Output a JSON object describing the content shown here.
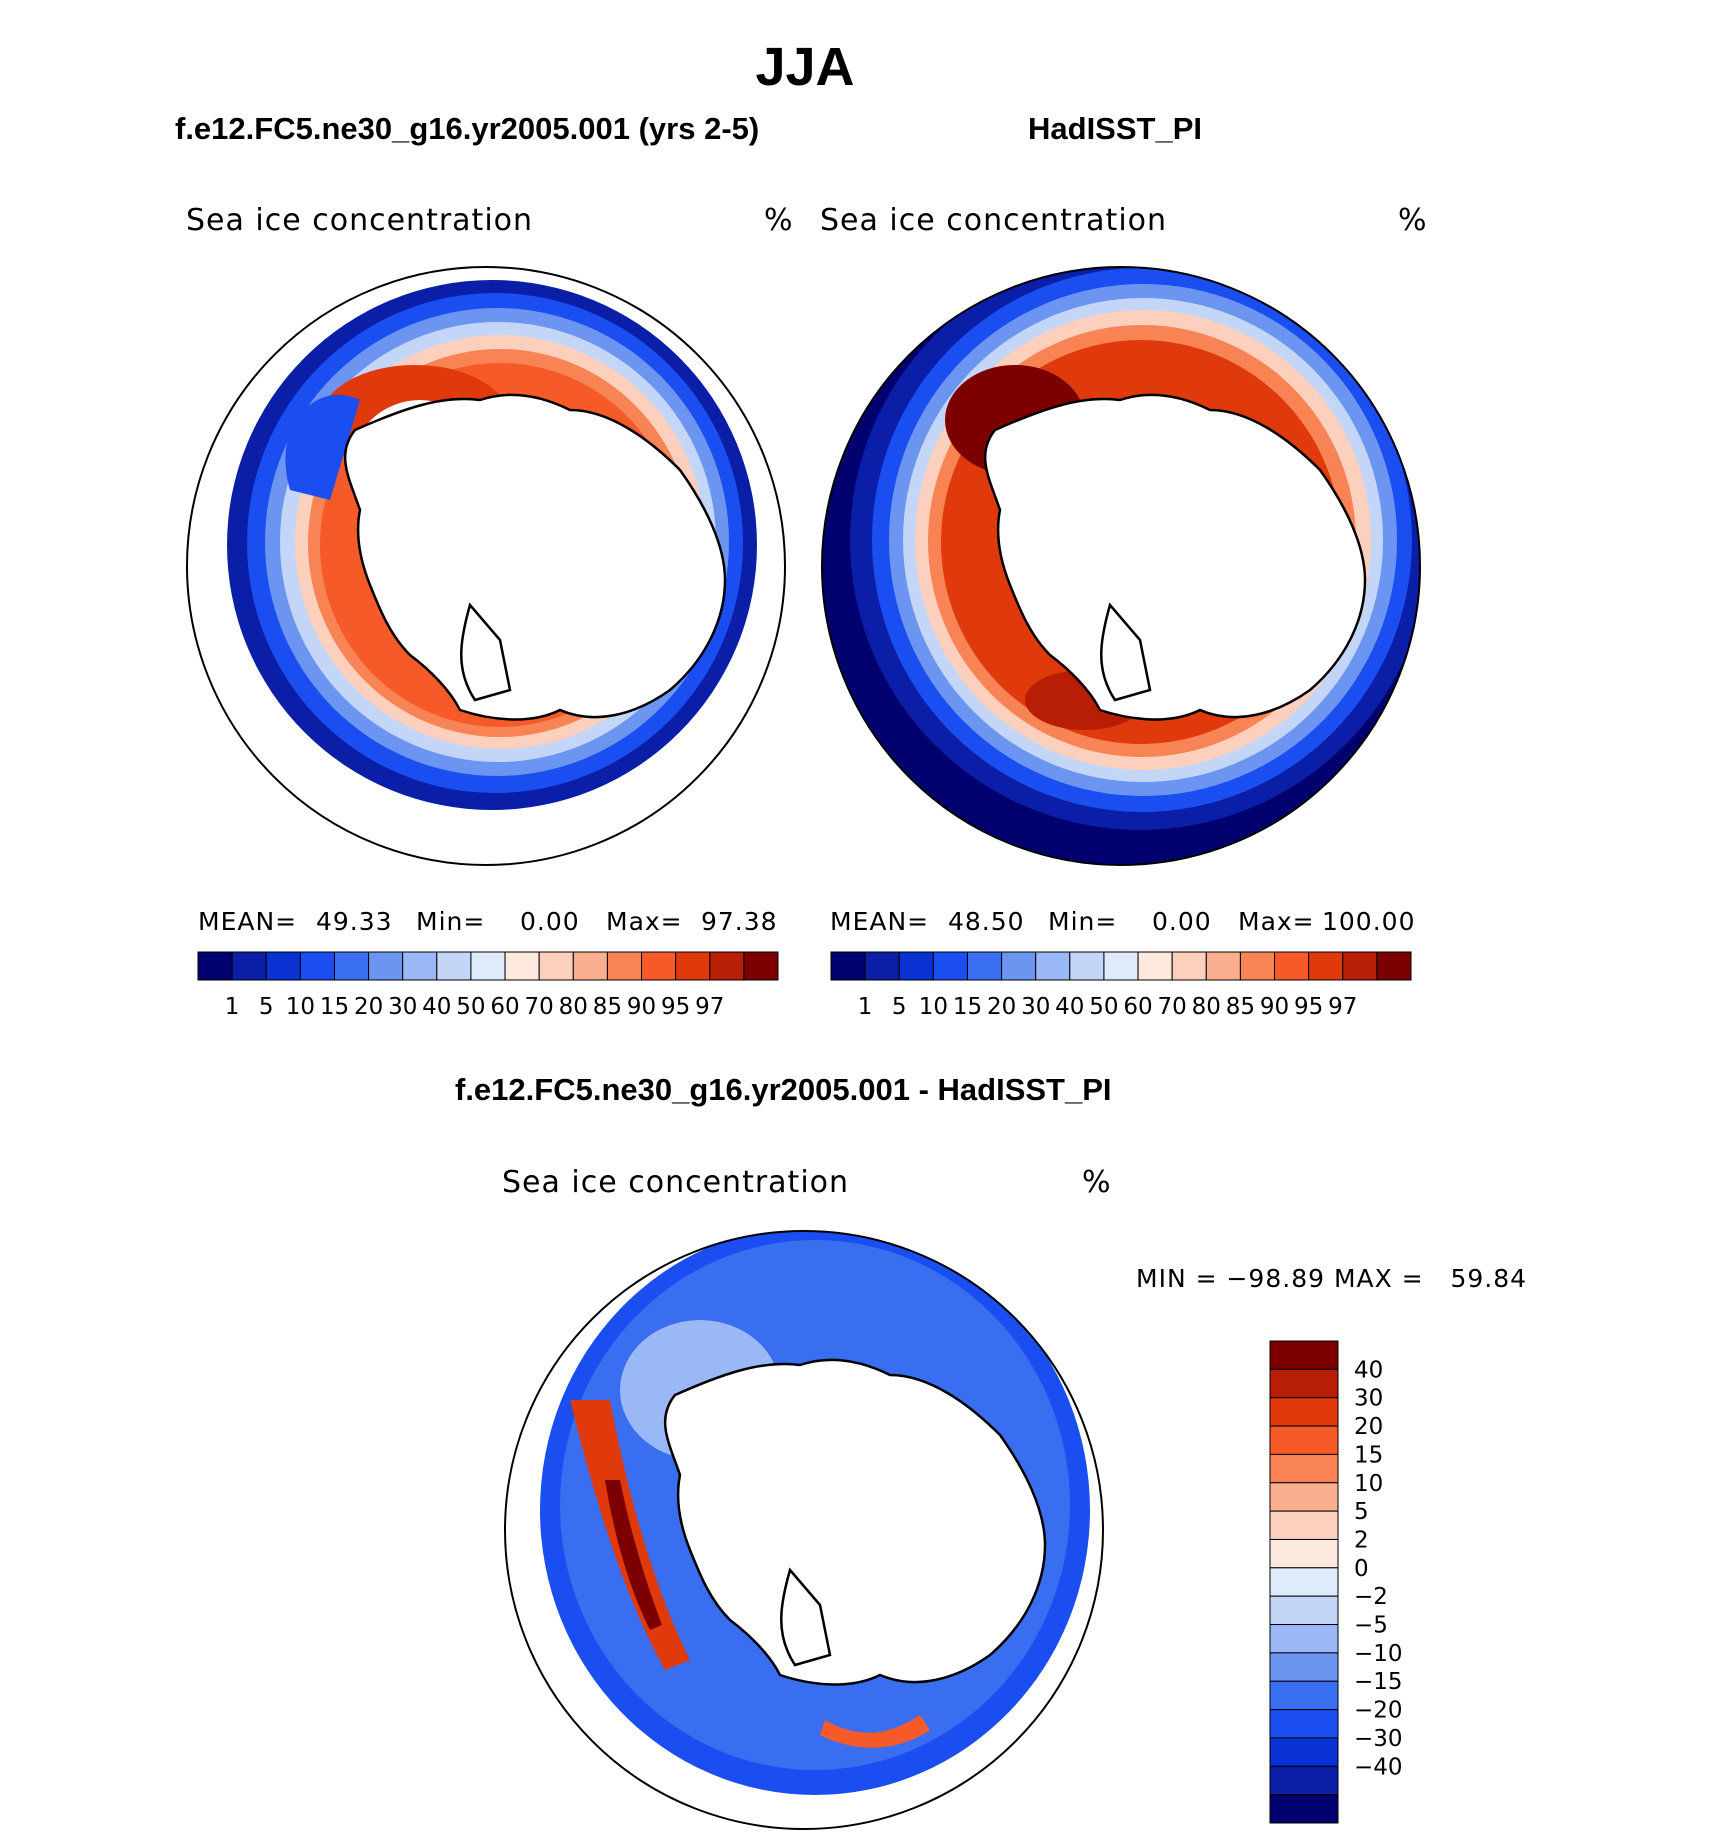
{
  "figure": {
    "season_title": "JJA",
    "panels": [
      {
        "id": "model",
        "case_title": "f.e12.FC5.ne30_g16.yr2005.001 (yrs 2-5)",
        "variable": "Sea ice concentration",
        "units": "%",
        "stats": {
          "mean_label": "MEAN=",
          "mean": "49.33",
          "min_label": "Min=",
          "min": "0.00",
          "max_label": "Max=",
          "max": "97.38"
        }
      },
      {
        "id": "obs",
        "case_title": "HadISST_PI",
        "variable": "Sea ice concentration",
        "units": "%",
        "stats": {
          "mean_label": "MEAN=",
          "mean": "48.50",
          "min_label": "Min=",
          "min": "0.00",
          "max_label": "Max=",
          "max": "100.00"
        }
      },
      {
        "id": "diff",
        "case_title": "f.e12.FC5.ne30_g16.yr2005.001 - HadISST_PI",
        "variable": "Sea ice concentration",
        "units": "%",
        "stats_text": "MIN = −98.89 MAX =   59.84"
      }
    ],
    "abs_colorbar": {
      "colors": [
        "#00006e",
        "#0a1ea8",
        "#0a32d2",
        "#1a4ef0",
        "#3a6ef0",
        "#6b95f0",
        "#9ab8f5",
        "#c4d6f8",
        "#deebfa",
        "#fde9dd",
        "#fcd0bd",
        "#fbae8e",
        "#f88355",
        "#f65a28",
        "#e03a0c",
        "#b81d06",
        "#7d0000"
      ],
      "labels": [
        "1",
        "5",
        "10",
        "15",
        "20",
        "30",
        "40",
        "50",
        "60",
        "70",
        "80",
        "85",
        "90",
        "95",
        "97"
      ]
    },
    "diff_colorbar": {
      "colors": [
        "#7d0000",
        "#b81d06",
        "#e03a0c",
        "#f65a28",
        "#f88355",
        "#fbae8e",
        "#fcd0bd",
        "#fde9dd",
        "#deebfa",
        "#c4d6f8",
        "#9ab8f5",
        "#6b95f0",
        "#3a6ef0",
        "#1a4ef0",
        "#0a32d2",
        "#0a1ea8",
        "#00006e"
      ],
      "labels": [
        "40",
        "30",
        "20",
        "15",
        "10",
        "5",
        "2",
        "0",
        "−2",
        "−5",
        "−10",
        "−15",
        "−20",
        "−30",
        "−40"
      ]
    }
  }
}
